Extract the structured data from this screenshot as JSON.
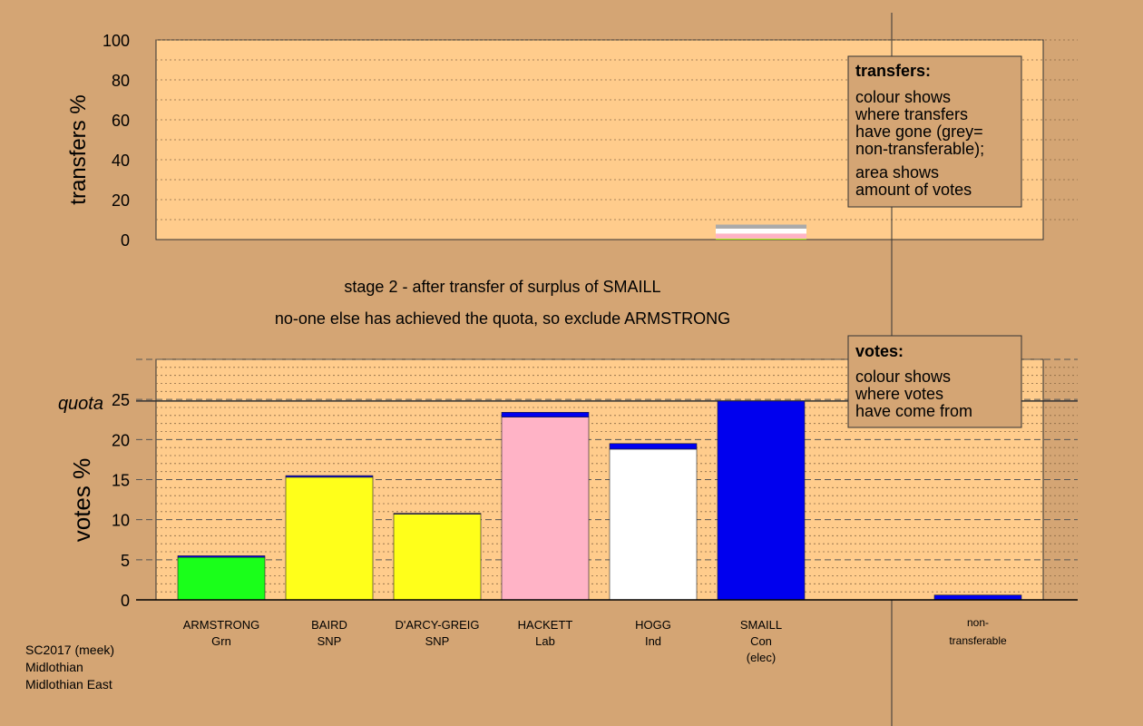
{
  "stage_text": {
    "line1": "stage 2 - after transfer of surplus of SMAILL",
    "line2": "no-one else has achieved the quota, so exclude ARMSTRONG"
  },
  "footer": {
    "line1": "SC2017 (meek)",
    "line2": "Midlothian",
    "line3": "Midlothian East"
  },
  "colors": {
    "background": "#d4a574",
    "plot_background": "#ffcc8c",
    "Grn": "#1aff1a",
    "SNP": "#ffff1a",
    "Lab": "#ffb3c6",
    "Ind": "#ffffff",
    "Con": "#0000ee",
    "non_transferable": "#aaaaaa"
  },
  "chart_data": [
    {
      "type": "bar",
      "role": "transfers",
      "ylabel": "transfers %",
      "ylim": [
        0,
        100
      ],
      "yticks": [
        0,
        20,
        40,
        60,
        80,
        100
      ],
      "legend_box": {
        "title": "transfers:",
        "lines1": [
          "colour shows",
          "where transfers",
          "have gone (grey=",
          "non-transferable);"
        ],
        "lines2": [
          "area shows",
          "amount of votes"
        ]
      },
      "transfer_from": "SMAILL",
      "segments": [
        {
          "to": "ARMSTRONG",
          "color": "Grn",
          "value": 0.2
        },
        {
          "to": "BAIRD",
          "color": "SNP",
          "value": 0.2
        },
        {
          "to": "D'ARCY-GREIG",
          "color": "SNP",
          "value": 0.1
        },
        {
          "to": "HACKETT",
          "color": "Lab",
          "value": 2.5
        },
        {
          "to": "HOGG",
          "color": "Ind",
          "value": 2.5
        },
        {
          "to": "non-transferable",
          "color": "non_transferable",
          "value": 2.0
        }
      ]
    },
    {
      "type": "bar",
      "role": "votes",
      "ylabel": "votes %",
      "ylim": [
        0,
        30
      ],
      "yticks": [
        0,
        5,
        10,
        15,
        20,
        25
      ],
      "quota": 24.8,
      "quota_label": "quota",
      "legend_box": {
        "title": "votes:",
        "lines1": [
          "colour shows",
          "where votes",
          "have come from"
        ]
      },
      "candidates": [
        {
          "name": "ARMSTRONG",
          "party": "Grn",
          "extra": "",
          "segments": [
            {
              "color": "Grn",
              "value": 5.3
            },
            {
              "color": "Con",
              "value": 0.2
            }
          ]
        },
        {
          "name": "BAIRD",
          "party": "SNP",
          "extra": "",
          "segments": [
            {
              "color": "SNP",
              "value": 15.3
            },
            {
              "color": "Con",
              "value": 0.2
            }
          ]
        },
        {
          "name": "D'ARCY-GREIG",
          "party": "SNP",
          "extra": "",
          "segments": [
            {
              "color": "SNP",
              "value": 10.7
            },
            {
              "color": "Con",
              "value": 0.1
            }
          ]
        },
        {
          "name": "HACKETT",
          "party": "Lab",
          "extra": "",
          "segments": [
            {
              "color": "Lab",
              "value": 22.8
            },
            {
              "color": "Con",
              "value": 0.6
            }
          ]
        },
        {
          "name": "HOGG",
          "party": "Ind",
          "extra": "",
          "segments": [
            {
              "color": "Ind",
              "value": 18.8
            },
            {
              "color": "Con",
              "value": 0.7
            }
          ]
        },
        {
          "name": "SMAILL",
          "party": "Con",
          "extra": "(elec)",
          "segments": [
            {
              "color": "Con",
              "value": 24.8
            }
          ]
        }
      ],
      "non_transferable": {
        "label1": "non-",
        "label2": "transferable",
        "segments": [
          {
            "color": "Con",
            "value": 0.6
          }
        ]
      }
    }
  ]
}
